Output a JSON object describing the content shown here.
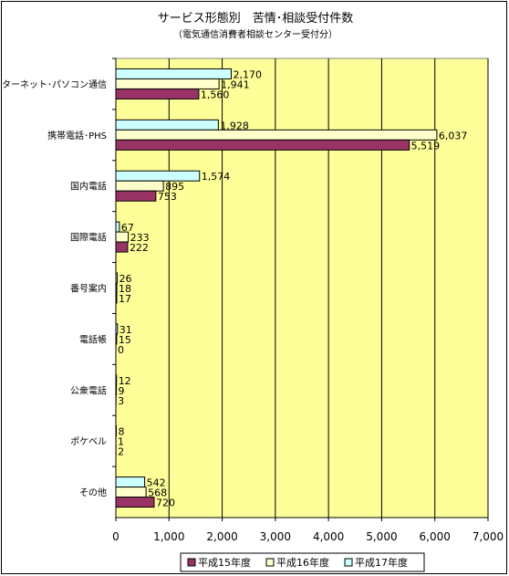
{
  "chart_data": {
    "type": "bar",
    "orientation": "horizontal",
    "title": "サービス形態別　苦情･相談受付件数",
    "subtitle": "（電気通信消費者相談センター受付分）",
    "categories": [
      "インターネット･パソコン通信",
      "携帯電話･PHS",
      "国内電話",
      "国際電話",
      "番号案内",
      "電話帳",
      "公衆電話",
      "ポケベル",
      "その他"
    ],
    "series": [
      {
        "name": "平成15年度",
        "color": "#993366",
        "values": [
          1560,
          5519,
          753,
          222,
          17,
          0,
          3,
          2,
          720
        ],
        "labels": [
          "1,560",
          "5,519",
          "753",
          "222",
          "17",
          "0",
          "3",
          "2",
          "720"
        ]
      },
      {
        "name": "平成16年度",
        "color": "#ffffcc",
        "values": [
          1941,
          6037,
          895,
          233,
          18,
          15,
          9,
          1,
          568
        ],
        "labels": [
          "1,941",
          "6,037",
          "895",
          "233",
          "18",
          "15",
          "9",
          "1",
          "568"
        ]
      },
      {
        "name": "平成17年度",
        "color": "#ccffff",
        "values": [
          2170,
          1928,
          1574,
          67,
          26,
          31,
          12,
          8,
          542
        ],
        "labels": [
          "2,170",
          "1,928",
          "1,574",
          "67",
          "26",
          "31",
          "12",
          "8",
          "542"
        ]
      }
    ],
    "xlim": [
      0,
      7000
    ],
    "xticks": [
      0,
      1000,
      2000,
      3000,
      4000,
      5000,
      6000,
      7000
    ],
    "xtick_labels": [
      "0",
      "1,000",
      "2,000",
      "3,000",
      "4,000",
      "5,000",
      "6,000",
      "7,000"
    ],
    "plot_background": "#ffff99",
    "grid": true,
    "legend_position": "bottom"
  }
}
